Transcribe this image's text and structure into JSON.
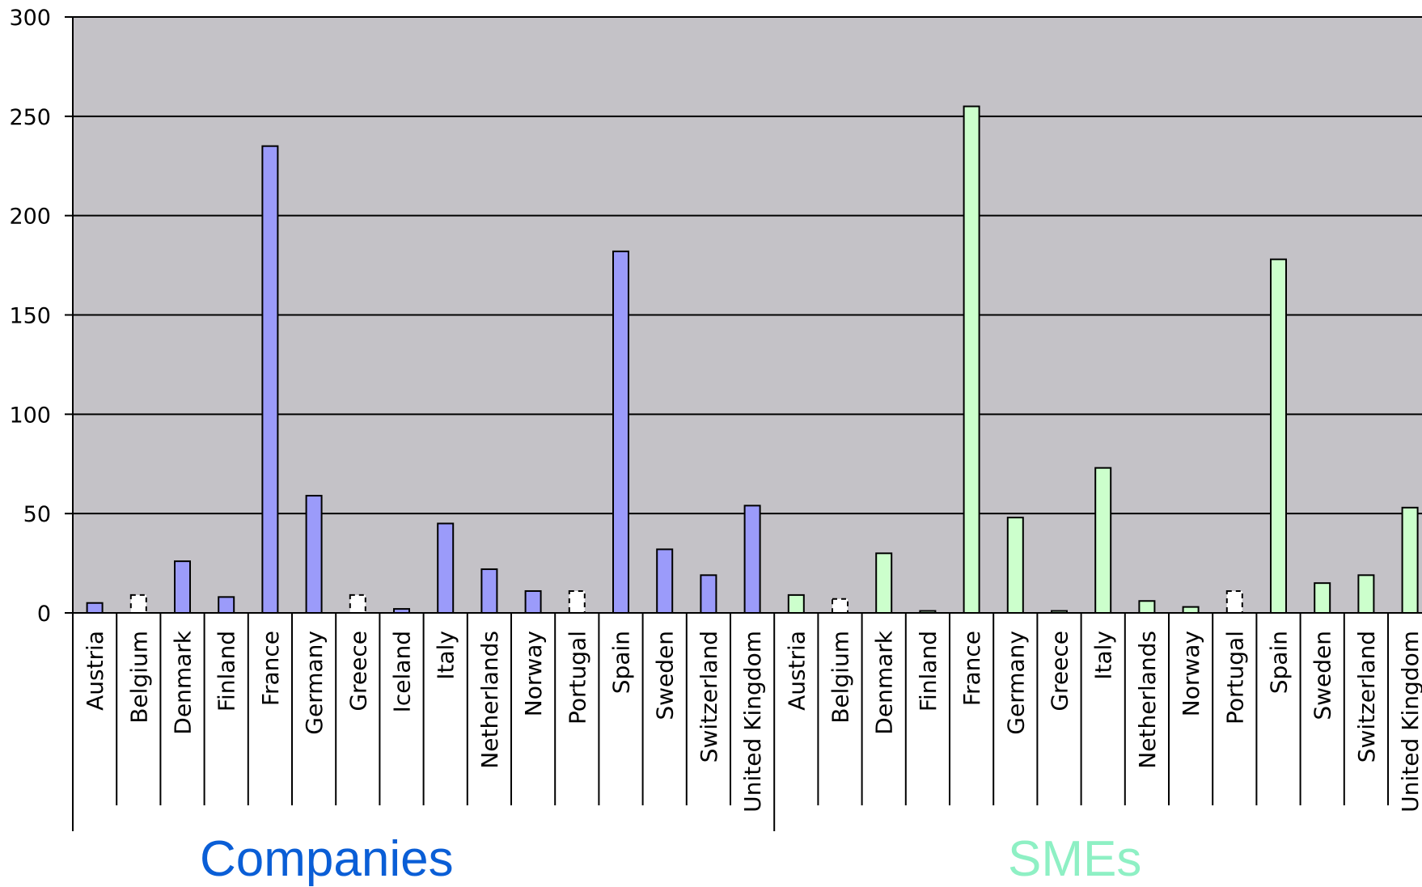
{
  "chart_data": {
    "type": "bar",
    "title": "",
    "xlabel": "",
    "ylabel": "",
    "ylim": [
      0,
      300
    ],
    "yticks": [
      0,
      50,
      100,
      150,
      200,
      250,
      300
    ],
    "grid": true,
    "plot_background": "#c4c2c7",
    "groups": [
      {
        "label": "Companies",
        "label_color": "#0a5ed6",
        "bar_color": "#9b9bfa",
        "categories": [
          "Austria",
          "Belgium",
          "Denmark",
          "Finland",
          "France",
          "Germany",
          "Greece",
          "Iceland",
          "Italy",
          "Netherlands",
          "Norway",
          "Portugal",
          "Spain",
          "Sweden",
          "Switzerland",
          "United Kingdom"
        ],
        "values": [
          5,
          9,
          26,
          8,
          235,
          59,
          9,
          2,
          45,
          22,
          11,
          11,
          182,
          32,
          19,
          54
        ],
        "missing": [
          false,
          true,
          false,
          false,
          false,
          false,
          true,
          false,
          false,
          false,
          false,
          true,
          false,
          false,
          false,
          false
        ]
      },
      {
        "label": "SMEs",
        "label_color": "#8ef0c4",
        "bar_color": "#ccffcc",
        "categories": [
          "Austria",
          "Belgium",
          "Denmark",
          "Finland",
          "France",
          "Germany",
          "Greece",
          "Italy",
          "Netherlands",
          "Norway",
          "Portugal",
          "Spain",
          "Sweden",
          "Switzerland",
          "United Kingdom"
        ],
        "values": [
          9,
          7,
          30,
          1,
          255,
          48,
          1,
          73,
          6,
          3,
          11,
          178,
          15,
          19,
          53
        ],
        "missing": [
          false,
          true,
          false,
          false,
          false,
          false,
          false,
          false,
          false,
          false,
          true,
          false,
          false,
          false,
          false
        ]
      }
    ]
  }
}
